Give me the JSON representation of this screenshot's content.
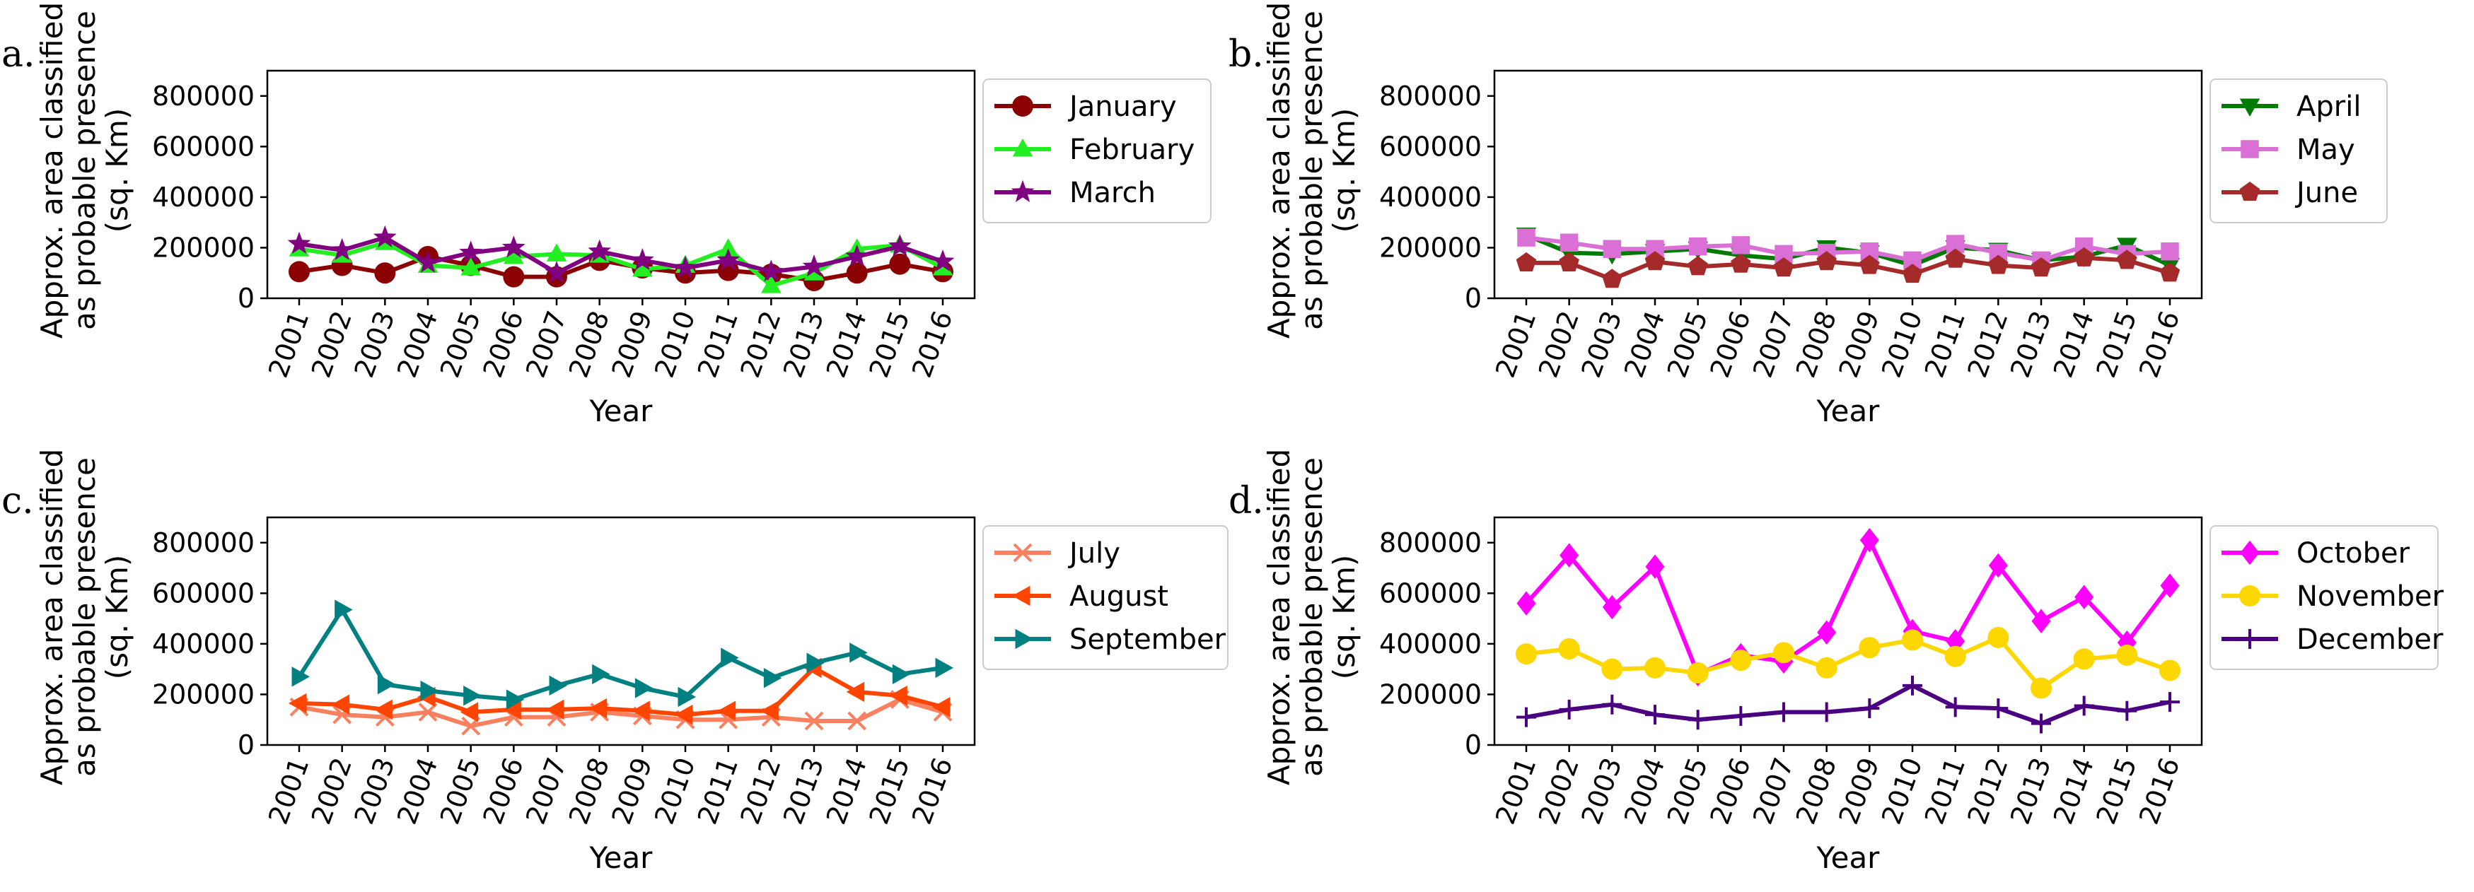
{
  "chart_data": [
    {
      "type": "line",
      "panel_label": "a.",
      "ylabel_lines": [
        "Approx. area classified",
        "as probable presence",
        "(sq. Km)"
      ],
      "xlabel": "Year",
      "x": [
        "2001",
        "2002",
        "2003",
        "2004",
        "2005",
        "2006",
        "2007",
        "2008",
        "2009",
        "2010",
        "2011",
        "2012",
        "2013",
        "2014",
        "2015",
        "2016"
      ],
      "yticks": [
        0,
        200000,
        400000,
        600000,
        800000
      ],
      "ylim": [
        0,
        900000
      ],
      "legend_position": "right",
      "series": [
        {
          "name": "January",
          "color": "#8b0000",
          "marker": "circle",
          "values": [
            105000,
            130000,
            100000,
            165000,
            130000,
            85000,
            85000,
            150000,
            120000,
            100000,
            110000,
            95000,
            70000,
            100000,
            135000,
            105000
          ]
        },
        {
          "name": "February",
          "color": "#22ee22",
          "marker": "triangle-up",
          "values": [
            195000,
            170000,
            220000,
            130000,
            120000,
            165000,
            175000,
            170000,
            115000,
            130000,
            195000,
            50000,
            100000,
            195000,
            210000,
            120000
          ]
        },
        {
          "name": "March",
          "color": "#800080",
          "marker": "star",
          "values": [
            215000,
            190000,
            240000,
            140000,
            180000,
            200000,
            100000,
            185000,
            150000,
            120000,
            150000,
            105000,
            125000,
            165000,
            205000,
            145000
          ]
        }
      ]
    },
    {
      "type": "line",
      "panel_label": "b.",
      "ylabel_lines": [
        "Approx. area classified",
        "as probable presence",
        "(sq. Km)"
      ],
      "xlabel": "Year",
      "x": [
        "2001",
        "2002",
        "2003",
        "2004",
        "2005",
        "2006",
        "2007",
        "2008",
        "2009",
        "2010",
        "2011",
        "2012",
        "2013",
        "2014",
        "2015",
        "2016"
      ],
      "yticks": [
        0,
        200000,
        400000,
        600000,
        800000
      ],
      "ylim": [
        0,
        900000
      ],
      "legend_position": "right",
      "series": [
        {
          "name": "April",
          "color": "#007a00",
          "marker": "triangle-down",
          "values": [
            250000,
            180000,
            175000,
            185000,
            195000,
            170000,
            155000,
            200000,
            180000,
            130000,
            200000,
            190000,
            150000,
            165000,
            210000,
            130000
          ]
        },
        {
          "name": "May",
          "color": "#da70d6",
          "marker": "square",
          "values": [
            240000,
            220000,
            195000,
            195000,
            205000,
            210000,
            175000,
            180000,
            185000,
            150000,
            215000,
            180000,
            150000,
            205000,
            175000,
            185000
          ]
        },
        {
          "name": "June",
          "color": "#a52a2a",
          "marker": "pentagon",
          "values": [
            140000,
            140000,
            75000,
            145000,
            125000,
            135000,
            120000,
            145000,
            130000,
            95000,
            155000,
            130000,
            120000,
            160000,
            150000,
            100000
          ]
        }
      ]
    },
    {
      "type": "line",
      "panel_label": "c.",
      "ylabel_lines": [
        "Approx. area classified",
        "as probable presence",
        "(sq. Km)"
      ],
      "xlabel": "Year",
      "x": [
        "2001",
        "2002",
        "2003",
        "2004",
        "2005",
        "2006",
        "2007",
        "2008",
        "2009",
        "2010",
        "2011",
        "2012",
        "2013",
        "2014",
        "2015",
        "2016"
      ],
      "yticks": [
        0,
        200000,
        400000,
        600000,
        800000
      ],
      "ylim": [
        0,
        900000
      ],
      "legend_position": "right",
      "series": [
        {
          "name": "July",
          "color": "#fa8060",
          "marker": "x",
          "values": [
            150000,
            120000,
            110000,
            130000,
            75000,
            110000,
            110000,
            130000,
            115000,
            100000,
            100000,
            110000,
            95000,
            95000,
            180000,
            130000
          ]
        },
        {
          "name": "August",
          "color": "#ff4500",
          "marker": "triangle-left",
          "values": [
            165000,
            160000,
            140000,
            190000,
            130000,
            140000,
            140000,
            145000,
            135000,
            120000,
            135000,
            135000,
            305000,
            210000,
            195000,
            150000
          ]
        },
        {
          "name": "September",
          "color": "#008080",
          "marker": "triangle-right",
          "values": [
            270000,
            535000,
            240000,
            215000,
            195000,
            180000,
            235000,
            280000,
            225000,
            190000,
            345000,
            265000,
            325000,
            365000,
            280000,
            305000
          ]
        }
      ]
    },
    {
      "type": "line",
      "panel_label": "d.",
      "ylabel_lines": [
        "Approx. area classified",
        "as probable presence",
        "(sq. Km)"
      ],
      "xlabel": "Year",
      "x": [
        "2001",
        "2002",
        "2003",
        "2004",
        "2005",
        "2006",
        "2007",
        "2008",
        "2009",
        "2010",
        "2011",
        "2012",
        "2013",
        "2014",
        "2015",
        "2016"
      ],
      "yticks": [
        0,
        200000,
        400000,
        600000,
        800000
      ],
      "ylim": [
        0,
        900000
      ],
      "legend_position": "right",
      "series": [
        {
          "name": "October",
          "color": "#ff00ff",
          "marker": "diamond",
          "values": [
            560000,
            750000,
            545000,
            705000,
            280000,
            355000,
            330000,
            445000,
            810000,
            450000,
            410000,
            710000,
            490000,
            585000,
            405000,
            630000
          ]
        },
        {
          "name": "November",
          "color": "#ffd700",
          "marker": "circle",
          "values": [
            360000,
            380000,
            300000,
            305000,
            285000,
            335000,
            365000,
            305000,
            385000,
            415000,
            350000,
            425000,
            225000,
            340000,
            355000,
            295000
          ]
        },
        {
          "name": "December",
          "color": "#4b0082",
          "marker": "plus",
          "values": [
            110000,
            140000,
            160000,
            120000,
            100000,
            115000,
            130000,
            130000,
            145000,
            235000,
            150000,
            145000,
            85000,
            155000,
            135000,
            170000
          ]
        }
      ]
    }
  ]
}
